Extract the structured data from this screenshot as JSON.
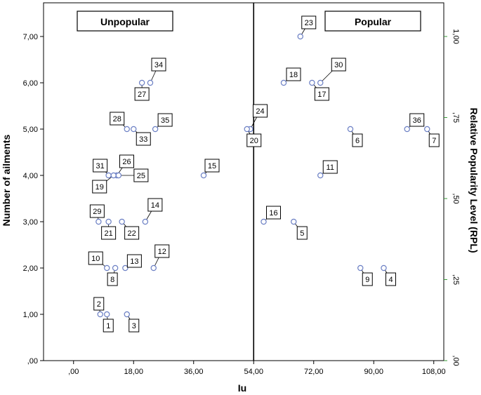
{
  "chart_data": {
    "type": "scatter",
    "xlabel": "Iu",
    "ylabel": "Number of ailments",
    "y2label": "Relative Popularity Level (RPL)",
    "xlim": [
      -9,
      111
    ],
    "ylim": [
      0,
      7.2
    ],
    "xticks": [
      0,
      18,
      36,
      54,
      72,
      90,
      108
    ],
    "xtick_labels": [
      ",00",
      "18,00",
      "36,00",
      "54,00",
      "72,00",
      "90,00",
      "108,00"
    ],
    "yticks": [
      0,
      1,
      2,
      3,
      4,
      5,
      6,
      7
    ],
    "ytick_labels": [
      ",00",
      "1,00",
      "2,00",
      "3,00",
      "4,00",
      "5,00",
      "6,00",
      "7,00"
    ],
    "y2ticks": [
      0,
      0.25,
      0.5,
      0.75,
      1.0
    ],
    "y2tick_labels": [
      ",00",
      ",25",
      ",50",
      ",75",
      "1,00"
    ],
    "y2lim": [
      0,
      1.0
    ],
    "divider_x": 54,
    "regions": [
      {
        "label": "Unpopular",
        "side": "left"
      },
      {
        "label": "Popular",
        "side": "right"
      }
    ],
    "grid": false,
    "colors": {
      "points": "#6b7fc4",
      "right_axis": "#3a9a3a",
      "frame": "#000000"
    },
    "points": [
      {
        "id": "23",
        "x": 68,
        "y": 7
      },
      {
        "id": "34",
        "x": 23,
        "y": 6
      },
      {
        "id": "27",
        "x": 20.5,
        "y": 6
      },
      {
        "id": "18",
        "x": 63,
        "y": 6
      },
      {
        "id": "30",
        "x": 74,
        "y": 6
      },
      {
        "id": "17",
        "x": 71.5,
        "y": 6
      },
      {
        "id": "28",
        "x": 16,
        "y": 5
      },
      {
        "id": "33",
        "x": 18,
        "y": 5
      },
      {
        "id": "35",
        "x": 24.5,
        "y": 5
      },
      {
        "id": "24",
        "x": 53,
        "y": 5
      },
      {
        "id": "20",
        "x": 52,
        "y": 5
      },
      {
        "id": "6",
        "x": 83,
        "y": 5
      },
      {
        "id": "36",
        "x": 100,
        "y": 5
      },
      {
        "id": "7",
        "x": 106,
        "y": 5
      },
      {
        "id": "31",
        "x": 10.5,
        "y": 4
      },
      {
        "id": "26",
        "x": 13,
        "y": 4
      },
      {
        "id": "19",
        "x": 12,
        "y": 4
      },
      {
        "id": "25",
        "x": 13.5,
        "y": 4
      },
      {
        "id": "15",
        "x": 39,
        "y": 4
      },
      {
        "id": "11",
        "x": 74,
        "y": 4
      },
      {
        "id": "29",
        "x": 7.5,
        "y": 3
      },
      {
        "id": "21",
        "x": 10.5,
        "y": 3
      },
      {
        "id": "22",
        "x": 14.5,
        "y": 3
      },
      {
        "id": "14",
        "x": 21.5,
        "y": 3
      },
      {
        "id": "16",
        "x": 57,
        "y": 3
      },
      {
        "id": "5",
        "x": 66,
        "y": 3
      },
      {
        "id": "10",
        "x": 10,
        "y": 2
      },
      {
        "id": "8",
        "x": 12.5,
        "y": 2
      },
      {
        "id": "13",
        "x": 15.5,
        "y": 2
      },
      {
        "id": "12",
        "x": 24,
        "y": 2
      },
      {
        "id": "9",
        "x": 86,
        "y": 2
      },
      {
        "id": "4",
        "x": 93,
        "y": 2
      },
      {
        "id": "2",
        "x": 8,
        "y": 1
      },
      {
        "id": "1",
        "x": 10,
        "y": 1
      },
      {
        "id": "3",
        "x": 16,
        "y": 1
      }
    ]
  }
}
